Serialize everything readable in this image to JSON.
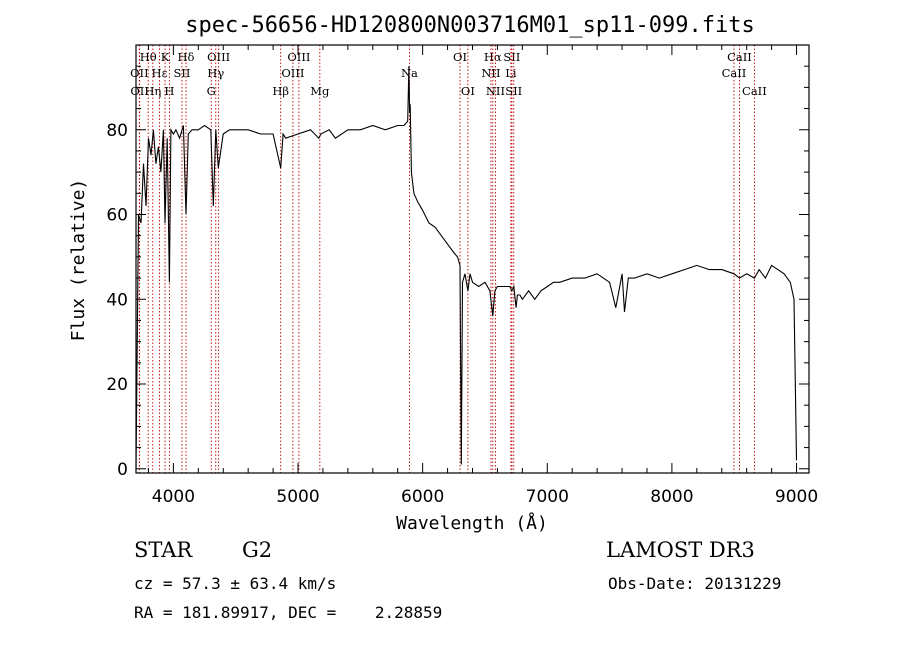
{
  "chart_data": {
    "type": "line",
    "title": "spec-56656-HD120800N003716M01_sp11-099.fits",
    "xlabel": "Wavelength (Å)",
    "ylabel": "Flux (relative)",
    "xlim": [
      3700,
      9100
    ],
    "ylim": [
      -1,
      100
    ],
    "x_ticks": [
      4000,
      5000,
      6000,
      7000,
      8000,
      9000
    ],
    "y_ticks": [
      0,
      20,
      40,
      60,
      80
    ],
    "series": [
      {
        "x": [
          3700,
          3720,
          3740,
          3760,
          3780,
          3800,
          3820,
          3840,
          3860,
          3880,
          3900,
          3920,
          3933,
          3950,
          3968,
          3980,
          4000,
          4020,
          4050,
          4080,
          4101,
          4120,
          4150,
          4200,
          4250,
          4300,
          4320,
          4340,
          4360,
          4400,
          4450,
          4500,
          4600,
          4700,
          4800,
          4861,
          4880,
          4900,
          5000,
          5100,
          5167,
          5183,
          5250,
          5300,
          5400,
          5500,
          5600,
          5700,
          5800,
          5850,
          5880,
          5890,
          5895,
          5900,
          5910,
          5930,
          5960,
          6000,
          6050,
          6100,
          6150,
          6200,
          6250,
          6280,
          6300,
          6310,
          6320,
          6340,
          6363,
          6380,
          6400,
          6450,
          6500,
          6540,
          6563,
          6580,
          6600,
          6650,
          6700,
          6716,
          6731,
          6750,
          6760,
          6780,
          6800,
          6850,
          6900,
          6950,
          7000,
          7050,
          7100,
          7200,
          7300,
          7400,
          7500,
          7550,
          7600,
          7620,
          7650,
          7700,
          7800,
          7900,
          8000,
          8100,
          8200,
          8300,
          8400,
          8498,
          8542,
          8600,
          8662,
          8700,
          8750,
          8800,
          8850,
          8900,
          8950,
          8980,
          9000
        ],
        "y": [
          0,
          60,
          58,
          72,
          62,
          78,
          74,
          80,
          72,
          76,
          70,
          80,
          58,
          78,
          44,
          80,
          79,
          80,
          78,
          81,
          60,
          79,
          80,
          80,
          81,
          80,
          62,
          80,
          71,
          79,
          80,
          80,
          80,
          79,
          79,
          71,
          79,
          78,
          79,
          80,
          78,
          79,
          80,
          78,
          80,
          80,
          81,
          80,
          81,
          81,
          82,
          95,
          84,
          86,
          70,
          65,
          63,
          61,
          58,
          57,
          55,
          53,
          51,
          50,
          48,
          1,
          44,
          46,
          42,
          46,
          44,
          43,
          44,
          42,
          36,
          42,
          43,
          43,
          43,
          42,
          43,
          38,
          41,
          41,
          40,
          42,
          40,
          42,
          43,
          44,
          44,
          45,
          45,
          46,
          44,
          38,
          46,
          37,
          45,
          45,
          46,
          45,
          46,
          47,
          48,
          47,
          47,
          46,
          45,
          46,
          45,
          47,
          45,
          48,
          47,
          46,
          44,
          40,
          2
        ]
      }
    ],
    "spectral_lines": [
      {
        "label": "Hθ",
        "wavelength": 3798,
        "row": 1
      },
      {
        "label": "OII",
        "wavelength": 3727,
        "row": 2
      },
      {
        "label": "OII",
        "wavelength": 3729,
        "row": 3
      },
      {
        "label": "K",
        "wavelength": 3933,
        "row": 1
      },
      {
        "label": "Hε",
        "wavelength": 3889,
        "row": 2
      },
      {
        "label": "Hη",
        "wavelength": 3835,
        "row": 3
      },
      {
        "label": "H",
        "wavelength": 3968,
        "row": 3
      },
      {
        "label": "Hδ",
        "wavelength": 4101,
        "row": 1
      },
      {
        "label": "SII",
        "wavelength": 4069,
        "row": 2
      },
      {
        "label": "OIII",
        "wavelength": 4363,
        "row": 1
      },
      {
        "label": "Hγ",
        "wavelength": 4340,
        "row": 2
      },
      {
        "label": "G",
        "wavelength": 4304,
        "row": 3
      },
      {
        "label": "OIII",
        "wavelength": 5007,
        "row": 1
      },
      {
        "label": "OIII",
        "wavelength": 4959,
        "row": 2
      },
      {
        "label": "Hβ",
        "wavelength": 4861,
        "row": 3
      },
      {
        "label": "Mg",
        "wavelength": 5175,
        "row": 3
      },
      {
        "label": "Na",
        "wavelength": 5894,
        "row": 2
      },
      {
        "label": "OI",
        "wavelength": 6300,
        "row": 1
      },
      {
        "label": "OI",
        "wavelength": 6363,
        "row": 3
      },
      {
        "label": "Hα",
        "wavelength": 6563,
        "row": 1
      },
      {
        "label": "SII",
        "wavelength": 6716,
        "row": 1
      },
      {
        "label": "NII",
        "wavelength": 6548,
        "row": 2
      },
      {
        "label": "Li",
        "wavelength": 6708,
        "row": 2
      },
      {
        "label": "NII",
        "wavelength": 6584,
        "row": 3
      },
      {
        "label": "SII",
        "wavelength": 6731,
        "row": 3
      },
      {
        "label": "CaII",
        "wavelength": 8542,
        "row": 1
      },
      {
        "label": "CaII",
        "wavelength": 8498,
        "row": 2
      },
      {
        "label": "CaII",
        "wavelength": 8662,
        "row": 3
      }
    ]
  },
  "info": {
    "class": "STAR",
    "subclass": "G2",
    "redshift": "cz = 57.3 ± 63.4 km/s",
    "coords": "RA = 181.89917, DEC =    2.28859",
    "survey": "LAMOST DR3",
    "obs_date": "Obs-Date: 20131229"
  },
  "colors": {
    "spectrum": "#000000",
    "line_markers": "#c00000",
    "axes": "#000000"
  }
}
